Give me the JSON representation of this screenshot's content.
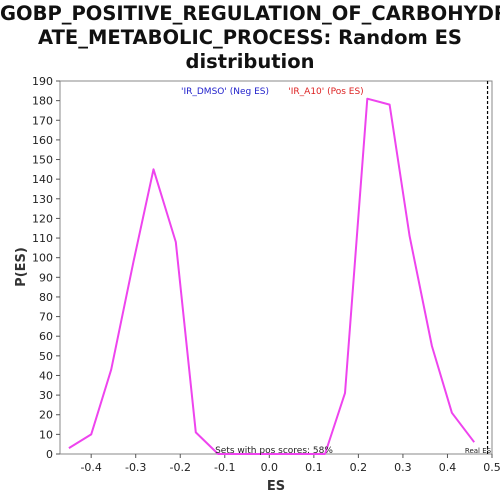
{
  "chart_data": {
    "type": "line",
    "title_lines": [
      "GOBP_POSITIVE_REGULATION_OF_CARBOHYDR",
      "ATE_METABOLIC_PROCESS: Random ES",
      "distribution"
    ],
    "xlabel": "ES",
    "ylabel": "P(ES)",
    "xlim": [
      -0.47,
      0.5
    ],
    "ylim": [
      0,
      190
    ],
    "x_ticks": [
      -0.4,
      -0.3,
      -0.2,
      -0.1,
      0,
      0.1,
      0.2,
      0.3,
      0.4,
      0.5
    ],
    "x_tick_labels": [
      "-0.4",
      "-0.3",
      "-0.2",
      "-0.1",
      "0.0",
      "0.1",
      "0.2",
      "0.3",
      "0.4",
      "0.5"
    ],
    "y_ticks": [
      0,
      10,
      20,
      30,
      40,
      50,
      60,
      70,
      80,
      90,
      100,
      110,
      120,
      130,
      140,
      150,
      160,
      170,
      180,
      190
    ],
    "y_tick_labels": [
      "0",
      "10",
      "20",
      "30",
      "40",
      "50",
      "60",
      "70",
      "80",
      "90",
      "100",
      "110",
      "120",
      "130",
      "140",
      "150",
      "160",
      "170",
      "180",
      "190"
    ],
    "grid": false,
    "legend": [
      {
        "label": "'IR_DMSO' (Neg ES)",
        "color": "#2222cc"
      },
      {
        "label": "'IR_A10' (Pos ES)",
        "color": "#dd2222"
      }
    ],
    "series": [
      {
        "color": "#ee44ee",
        "x": [
          -0.45,
          -0.4,
          -0.355,
          -0.305,
          -0.26,
          -0.21,
          -0.165,
          -0.115,
          -0.07,
          -0.02,
          0.03,
          0.075,
          0.125,
          0.17,
          0.22,
          0.27,
          0.315,
          0.365,
          0.41,
          0.46
        ],
        "y": [
          3,
          10,
          43,
          98,
          145,
          108,
          11,
          0,
          0,
          0,
          0,
          0,
          0,
          31,
          181,
          178,
          111,
          55,
          21,
          6
        ]
      }
    ],
    "annotations": {
      "pos_scores": "Sets with pos scores: 58%",
      "real_es_label": "Real ES",
      "real_es_value": 0.49
    }
  }
}
